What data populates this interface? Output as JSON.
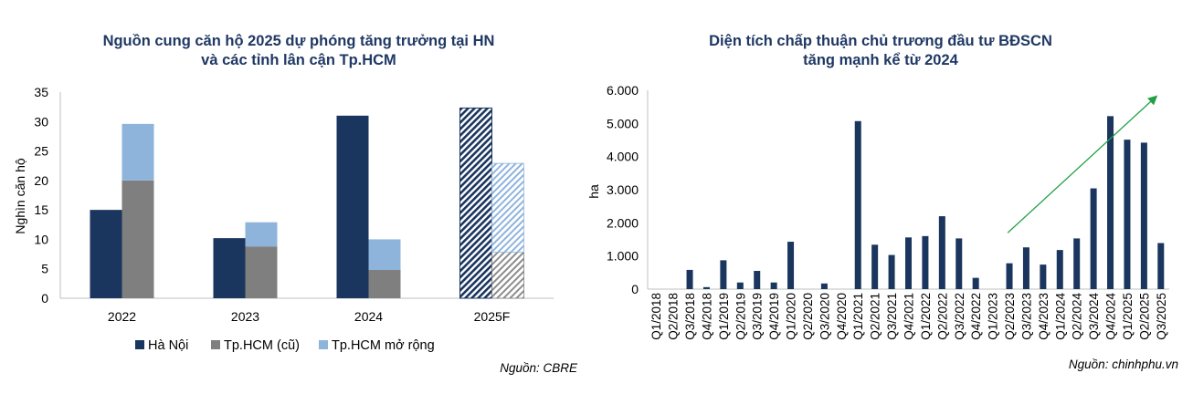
{
  "chart_data": [
    {
      "type": "bar",
      "title_lines": [
        "Nguồn cung căn hộ 2025 dự phóng tăng trưởng tại HN",
        "và các tỉnh lân cận Tp.HCM"
      ],
      "ylabel": "Nghìn căn hộ",
      "ylim": [
        0,
        35
      ],
      "yticks": [
        "0",
        "5",
        "10",
        "15",
        "20",
        "25",
        "30",
        "35"
      ],
      "categories": [
        "2022",
        "2023",
        "2024",
        "2025F"
      ],
      "forecast_category": "2025F",
      "series": [
        {
          "name": "Hà Nội",
          "color": "#1a355e",
          "stack": "a",
          "values": [
            15,
            10.2,
            31,
            32.3
          ]
        },
        {
          "name": "Tp.HCM (cũ)",
          "color": "#7f7f7f",
          "stack": "b",
          "values": [
            20,
            8.8,
            4.8,
            7.8
          ]
        },
        {
          "name": "Tp.HCM mở rộng",
          "color": "#8fb4dc",
          "stack": "b",
          "values": [
            9.6,
            4.1,
            5.2,
            15.1
          ]
        }
      ],
      "source": "Nguồn: CBRE"
    },
    {
      "type": "bar",
      "title_lines": [
        "Diện tích chấp thuận chủ trương đầu tư BĐSCN",
        "tăng mạnh kể từ 2024"
      ],
      "ylabel": "ha",
      "ylim": [
        0,
        6000
      ],
      "yticks": [
        "0",
        "1.000",
        "2.000",
        "3.000",
        "4.000",
        "5.000",
        "6.000"
      ],
      "color": "#1a355e",
      "trend_color": "#22a045",
      "categories": [
        "Q1/2018",
        "Q2/2018",
        "Q3/2018",
        "Q4/2018",
        "Q1/2019",
        "Q2/2019",
        "Q3/2019",
        "Q4/2019",
        "Q1/2020",
        "Q2/2020",
        "Q3/2020",
        "Q4/2020",
        "Q1/2021",
        "Q2/2021",
        "Q3/2021",
        "Q4/2021",
        "Q1/2022",
        "Q2/2022",
        "Q3/2022",
        "Q4/2022",
        "Q1/2023",
        "Q2/2023",
        "Q3/2023",
        "Q4/2023",
        "Q1/2024",
        "Q2/2024",
        "Q3/2024",
        "Q4/2024",
        "Q1/2025",
        "Q2/2025",
        "Q3/2025"
      ],
      "values": [
        0,
        0,
        580,
        60,
        870,
        200,
        550,
        200,
        1430,
        0,
        170,
        0,
        5070,
        1340,
        1030,
        1560,
        1600,
        2200,
        1530,
        340,
        0,
        780,
        1260,
        740,
        1180,
        1530,
        3040,
        5220,
        4510,
        4420,
        1390
      ],
      "source": "Nguồn: chinhphu.vn"
    }
  ]
}
